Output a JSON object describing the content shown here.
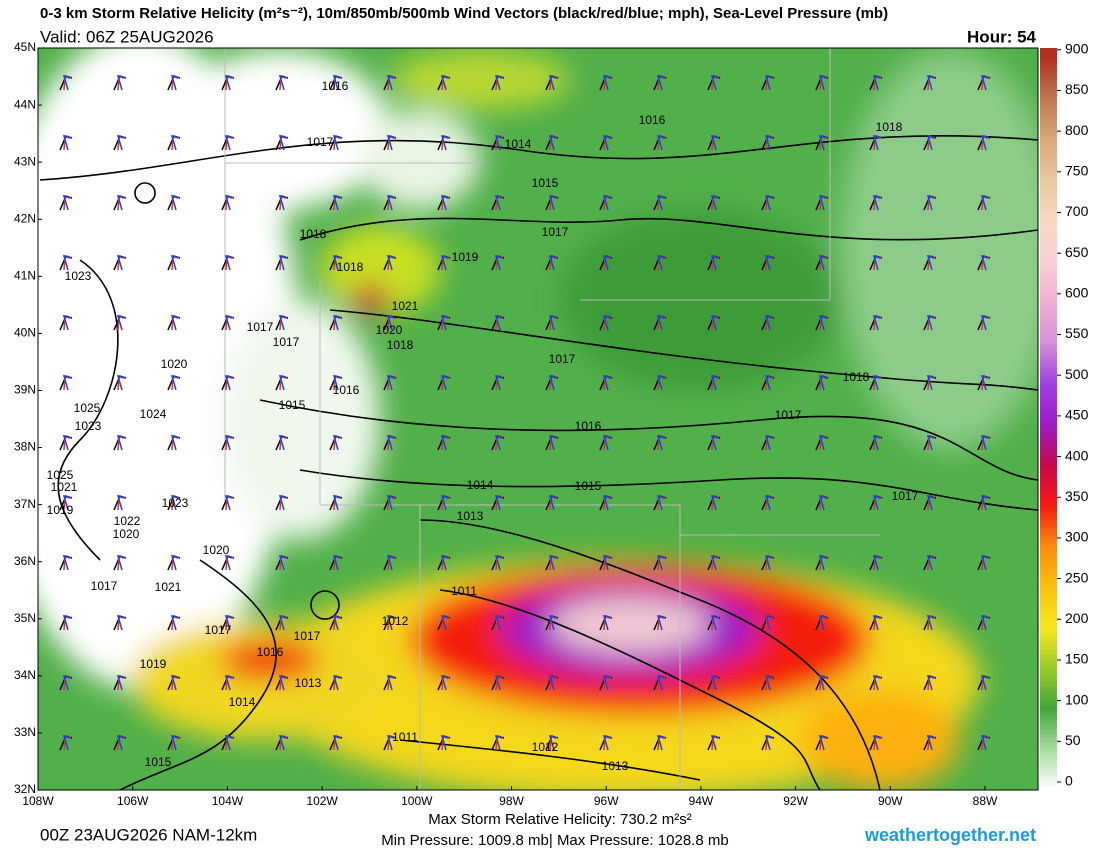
{
  "header": {
    "title": "0-3 km Storm Relative Helicity (m²s⁻²), 10m/850mb/500mb Wind Vectors (black/red/blue; mph), Sea-Level Pressure (mb)",
    "valid": "Valid: 06Z 25AUG2026",
    "hour": "Hour: 54"
  },
  "map": {
    "lat_labels": [
      "45N",
      "44N",
      "43N",
      "42N",
      "41N",
      "40N",
      "39N",
      "38N",
      "37N",
      "36N",
      "35N",
      "34N",
      "33N",
      "32N"
    ],
    "lon_labels": [
      "108W",
      "106W",
      "104W",
      "102W",
      "100W",
      "98W",
      "96W",
      "94W",
      "92W",
      "90W",
      "88W"
    ],
    "isobar_labels": [
      "1016",
      "1017",
      "1014",
      "1015",
      "1016",
      "1018",
      "1017",
      "1018",
      "1018",
      "1019",
      "1023",
      "1021",
      "1020",
      "1017",
      "1017",
      "1018",
      "1020",
      "1016",
      "1017",
      "1018",
      "1015",
      "1025",
      "1024",
      "1023",
      "1016",
      "1017",
      "1025",
      "1021",
      "1014",
      "1015",
      "1023",
      "1017",
      "1019",
      "1013",
      "1022",
      "1020",
      "1020",
      "1017",
      "1021",
      "1011",
      "1012",
      "1017",
      "1017",
      "1016",
      "1019",
      "1013",
      "1014",
      "1011",
      "1012",
      "1013",
      "1015"
    ]
  },
  "colorbar": {
    "ticks": [
      0,
      50,
      100,
      150,
      200,
      250,
      300,
      350,
      400,
      450,
      500,
      550,
      600,
      650,
      700,
      750,
      800,
      850,
      900
    ],
    "lim": [
      0,
      912
    ],
    "colors": [
      "#ffffff",
      "#a8dca0",
      "#3fa83a",
      "#9ccc2a",
      "#f4e81c",
      "#fcc010",
      "#fc8a0c",
      "#f41a10",
      "#c8084c",
      "#9c1cc8",
      "#a040e0",
      "#d890d8",
      "#f0b0d0",
      "#f8d0d8",
      "#f8d8c0",
      "#e8c8a0",
      "#d8a878",
      "#c07850",
      "#b03020"
    ]
  },
  "footer": {
    "run": "00Z 23AUG2026 NAM-12km",
    "max_srh": "Max Storm Relative Helicity: 730.2 m²s²",
    "pressure": "Min Pressure: 1009.8 mb| Max Pressure: 1028.8 mb",
    "site": "weathertogether.net"
  }
}
